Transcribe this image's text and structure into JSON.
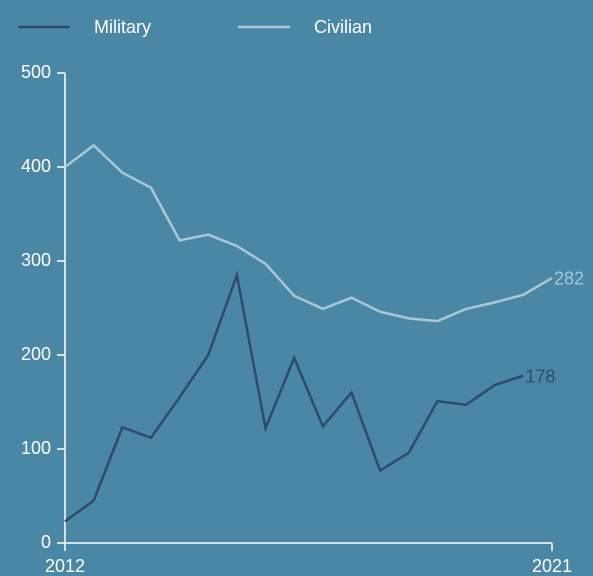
{
  "chart_data": {
    "type": "line",
    "categories": [
      "2012",
      null,
      null,
      null,
      null,
      null,
      null,
      null,
      null,
      null,
      null,
      null,
      null,
      null,
      null,
      null,
      null,
      "2021"
    ],
    "series": [
      {
        "name": "Military",
        "color": "#2e4a6f",
        "values": [
          23,
          45,
          123,
          112,
          155,
          200,
          285,
          122,
          197,
          124,
          160,
          77,
          96,
          151,
          147,
          168,
          178,
          null
        ]
      },
      {
        "name": "Civilian",
        "color": "#a8c7d7",
        "values": [
          400,
          423,
          394,
          378,
          322,
          328,
          316,
          297,
          263,
          249,
          261,
          246,
          239,
          236,
          249,
          256,
          264,
          282
        ]
      }
    ],
    "ylim": [
      0,
      500
    ],
    "yticks": [
      0,
      100,
      200,
      300,
      400,
      500
    ],
    "grid": false,
    "legend": "top"
  }
}
